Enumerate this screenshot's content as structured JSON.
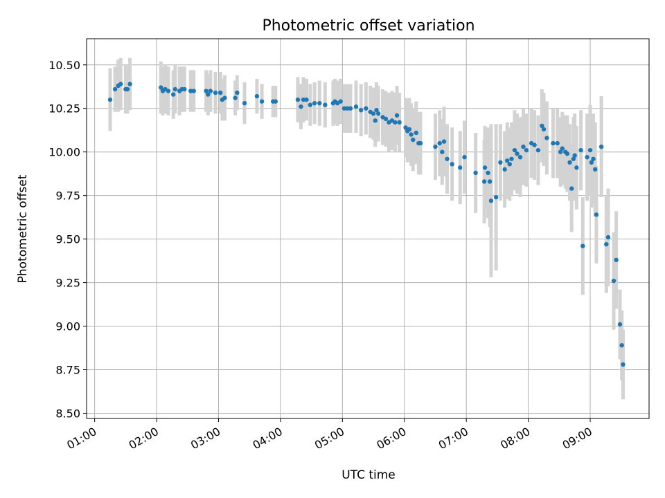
{
  "chart_data": {
    "type": "scatter",
    "title": "Photometric offset variation",
    "xlabel": "UTC time",
    "ylabel": "Photometric offset",
    "xlim": [
      0.87,
      9.95
    ],
    "ylim": [
      8.47,
      10.65
    ],
    "xticks": [
      {
        "value": 1,
        "label": "01:00"
      },
      {
        "value": 2,
        "label": "02:00"
      },
      {
        "value": 3,
        "label": "03:00"
      },
      {
        "value": 4,
        "label": "04:00"
      },
      {
        "value": 5,
        "label": "05:00"
      },
      {
        "value": 6,
        "label": "06:00"
      },
      {
        "value": 7,
        "label": "07:00"
      },
      {
        "value": 8,
        "label": "08:00"
      },
      {
        "value": 9,
        "label": "09:00"
      }
    ],
    "yticks": [
      {
        "value": 8.5,
        "label": "8.50"
      },
      {
        "value": 8.75,
        "label": "8.75"
      },
      {
        "value": 9.0,
        "label": "9.00"
      },
      {
        "value": 9.25,
        "label": "9.25"
      },
      {
        "value": 9.5,
        "label": "9.50"
      },
      {
        "value": 9.75,
        "label": "9.75"
      },
      {
        "value": 10.0,
        "label": "10.00"
      },
      {
        "value": 10.25,
        "label": "10.25"
      },
      {
        "value": 10.5,
        "label": "10.50"
      }
    ],
    "grid": true,
    "point_color": "#1f77b4",
    "errorbar_color": "#d3d3d3",
    "series": [
      {
        "points": [
          {
            "x": 1.25,
            "y": 10.3,
            "err": 0.18
          },
          {
            "x": 1.33,
            "y": 10.36,
            "err": 0.13
          },
          {
            "x": 1.38,
            "y": 10.38,
            "err": 0.15
          },
          {
            "x": 1.42,
            "y": 10.39,
            "err": 0.15
          },
          {
            "x": 1.5,
            "y": 10.36,
            "err": 0.14
          },
          {
            "x": 1.53,
            "y": 10.36,
            "err": 0.14
          },
          {
            "x": 1.57,
            "y": 10.39,
            "err": 0.15
          },
          {
            "x": 2.07,
            "y": 10.37,
            "err": 0.15
          },
          {
            "x": 2.1,
            "y": 10.35,
            "err": 0.14
          },
          {
            "x": 2.14,
            "y": 10.36,
            "err": 0.14
          },
          {
            "x": 2.19,
            "y": 10.35,
            "err": 0.14
          },
          {
            "x": 2.27,
            "y": 10.33,
            "err": 0.14
          },
          {
            "x": 2.3,
            "y": 10.36,
            "err": 0.14
          },
          {
            "x": 2.37,
            "y": 10.35,
            "err": 0.14
          },
          {
            "x": 2.41,
            "y": 10.36,
            "err": 0.13
          },
          {
            "x": 2.45,
            "y": 10.36,
            "err": 0.13
          },
          {
            "x": 2.55,
            "y": 10.35,
            "err": 0.12
          },
          {
            "x": 2.6,
            "y": 10.35,
            "err": 0.12
          },
          {
            "x": 2.8,
            "y": 10.35,
            "err": 0.12
          },
          {
            "x": 2.83,
            "y": 10.33,
            "err": 0.12
          },
          {
            "x": 2.87,
            "y": 10.35,
            "err": 0.12
          },
          {
            "x": 2.95,
            "y": 10.34,
            "err": 0.12
          },
          {
            "x": 3.03,
            "y": 10.34,
            "err": 0.12
          },
          {
            "x": 3.06,
            "y": 10.3,
            "err": 0.12
          },
          {
            "x": 3.1,
            "y": 10.31,
            "err": 0.13
          },
          {
            "x": 3.27,
            "y": 10.31,
            "err": 0.1
          },
          {
            "x": 3.3,
            "y": 10.34,
            "err": 0.1
          },
          {
            "x": 3.42,
            "y": 10.28,
            "err": 0.12
          },
          {
            "x": 3.62,
            "y": 10.32,
            "err": 0.1
          },
          {
            "x": 3.7,
            "y": 10.29,
            "err": 0.1
          },
          {
            "x": 3.88,
            "y": 10.29,
            "err": 0.09
          },
          {
            "x": 3.92,
            "y": 10.29,
            "err": 0.09
          },
          {
            "x": 4.28,
            "y": 10.3,
            "err": 0.13
          },
          {
            "x": 4.33,
            "y": 10.26,
            "err": 0.13
          },
          {
            "x": 4.37,
            "y": 10.3,
            "err": 0.13
          },
          {
            "x": 4.42,
            "y": 10.3,
            "err": 0.12
          },
          {
            "x": 4.48,
            "y": 10.27,
            "err": 0.12
          },
          {
            "x": 4.55,
            "y": 10.28,
            "err": 0.12
          },
          {
            "x": 4.63,
            "y": 10.28,
            "err": 0.13
          },
          {
            "x": 4.72,
            "y": 10.27,
            "err": 0.13
          },
          {
            "x": 4.85,
            "y": 10.28,
            "err": 0.13
          },
          {
            "x": 4.88,
            "y": 10.29,
            "err": 0.13
          },
          {
            "x": 4.92,
            "y": 10.28,
            "err": 0.13
          },
          {
            "x": 4.97,
            "y": 10.29,
            "err": 0.13
          },
          {
            "x": 5.03,
            "y": 10.25,
            "err": 0.14
          },
          {
            "x": 5.08,
            "y": 10.25,
            "err": 0.14
          },
          {
            "x": 5.13,
            "y": 10.25,
            "err": 0.14
          },
          {
            "x": 5.22,
            "y": 10.26,
            "err": 0.15
          },
          {
            "x": 5.3,
            "y": 10.24,
            "err": 0.15
          },
          {
            "x": 5.38,
            "y": 10.25,
            "err": 0.15
          },
          {
            "x": 5.45,
            "y": 10.23,
            "err": 0.15
          },
          {
            "x": 5.5,
            "y": 10.22,
            "err": 0.15
          },
          {
            "x": 5.53,
            "y": 10.18,
            "err": 0.15
          },
          {
            "x": 5.55,
            "y": 10.24,
            "err": 0.16
          },
          {
            "x": 5.58,
            "y": 10.22,
            "err": 0.16
          },
          {
            "x": 5.65,
            "y": 10.2,
            "err": 0.16
          },
          {
            "x": 5.7,
            "y": 10.19,
            "err": 0.16
          },
          {
            "x": 5.75,
            "y": 10.17,
            "err": 0.17
          },
          {
            "x": 5.8,
            "y": 10.18,
            "err": 0.17
          },
          {
            "x": 5.85,
            "y": 10.17,
            "err": 0.17
          },
          {
            "x": 5.88,
            "y": 10.21,
            "err": 0.17
          },
          {
            "x": 5.92,
            "y": 10.17,
            "err": 0.17
          },
          {
            "x": 6.02,
            "y": 10.14,
            "err": 0.17
          },
          {
            "x": 6.05,
            "y": 10.12,
            "err": 0.18
          },
          {
            "x": 6.08,
            "y": 10.13,
            "err": 0.18
          },
          {
            "x": 6.11,
            "y": 10.1,
            "err": 0.18
          },
          {
            "x": 6.14,
            "y": 10.07,
            "err": 0.18
          },
          {
            "x": 6.19,
            "y": 10.11,
            "err": 0.18
          },
          {
            "x": 6.23,
            "y": 10.05,
            "err": 0.18
          },
          {
            "x": 6.26,
            "y": 10.05,
            "err": 0.18
          },
          {
            "x": 6.5,
            "y": 10.03,
            "err": 0.19
          },
          {
            "x": 6.57,
            "y": 10.05,
            "err": 0.19
          },
          {
            "x": 6.61,
            "y": 10.0,
            "err": 0.19
          },
          {
            "x": 6.64,
            "y": 10.06,
            "err": 0.2
          },
          {
            "x": 6.69,
            "y": 9.96,
            "err": 0.2
          },
          {
            "x": 6.77,
            "y": 9.93,
            "err": 0.21
          },
          {
            "x": 6.9,
            "y": 9.91,
            "err": 0.21
          },
          {
            "x": 6.97,
            "y": 9.97,
            "err": 0.21
          },
          {
            "x": 7.15,
            "y": 9.88,
            "err": 0.23
          },
          {
            "x": 7.29,
            "y": 9.83,
            "err": 0.24
          },
          {
            "x": 7.3,
            "y": 9.91,
            "err": 0.24
          },
          {
            "x": 7.35,
            "y": 9.88,
            "err": 0.26
          },
          {
            "x": 7.38,
            "y": 9.83,
            "err": 0.26
          },
          {
            "x": 7.4,
            "y": 9.72,
            "err": 0.44
          },
          {
            "x": 7.48,
            "y": 9.74,
            "err": 0.42
          },
          {
            "x": 7.55,
            "y": 9.94,
            "err": 0.22
          },
          {
            "x": 7.62,
            "y": 9.9,
            "err": 0.22
          },
          {
            "x": 7.66,
            "y": 9.95,
            "err": 0.22
          },
          {
            "x": 7.7,
            "y": 9.93,
            "err": 0.21
          },
          {
            "x": 7.73,
            "y": 9.96,
            "err": 0.21
          },
          {
            "x": 7.78,
            "y": 10.01,
            "err": 0.23
          },
          {
            "x": 7.82,
            "y": 9.99,
            "err": 0.23
          },
          {
            "x": 7.87,
            "y": 9.97,
            "err": 0.23
          },
          {
            "x": 7.92,
            "y": 10.03,
            "err": 0.22
          },
          {
            "x": 7.97,
            "y": 10.01,
            "err": 0.21
          },
          {
            "x": 8.05,
            "y": 10.05,
            "err": 0.2
          },
          {
            "x": 8.1,
            "y": 10.04,
            "err": 0.2
          },
          {
            "x": 8.16,
            "y": 10.01,
            "err": 0.2
          },
          {
            "x": 8.22,
            "y": 10.15,
            "err": 0.21
          },
          {
            "x": 8.25,
            "y": 10.13,
            "err": 0.21
          },
          {
            "x": 8.3,
            "y": 10.08,
            "err": 0.21
          },
          {
            "x": 8.4,
            "y": 10.05,
            "err": 0.2
          },
          {
            "x": 8.47,
            "y": 10.05,
            "err": 0.2
          },
          {
            "x": 8.52,
            "y": 10.0,
            "err": 0.2
          },
          {
            "x": 8.55,
            "y": 10.02,
            "err": 0.21
          },
          {
            "x": 8.6,
            "y": 10.0,
            "err": 0.21
          },
          {
            "x": 8.63,
            "y": 9.99,
            "err": 0.22
          },
          {
            "x": 8.67,
            "y": 9.94,
            "err": 0.22
          },
          {
            "x": 8.7,
            "y": 9.79,
            "err": 0.25
          },
          {
            "x": 8.73,
            "y": 9.96,
            "err": 0.24
          },
          {
            "x": 8.75,
            "y": 9.98,
            "err": 0.24
          },
          {
            "x": 8.78,
            "y": 9.91,
            "err": 0.24
          },
          {
            "x": 8.85,
            "y": 10.01,
            "err": 0.23
          },
          {
            "x": 8.88,
            "y": 9.46,
            "err": 0.28
          },
          {
            "x": 8.95,
            "y": 9.97,
            "err": 0.25
          },
          {
            "x": 9.0,
            "y": 10.01,
            "err": 0.26
          },
          {
            "x": 9.02,
            "y": 9.94,
            "err": 0.26
          },
          {
            "x": 9.05,
            "y": 9.96,
            "err": 0.26
          },
          {
            "x": 9.08,
            "y": 9.9,
            "err": 0.27
          },
          {
            "x": 9.1,
            "y": 9.64,
            "err": 0.28
          },
          {
            "x": 9.18,
            "y": 10.03,
            "err": 0.29
          },
          {
            "x": 9.26,
            "y": 9.47,
            "err": 0.28
          },
          {
            "x": 9.29,
            "y": 9.51,
            "err": 0.28
          },
          {
            "x": 9.38,
            "y": 9.26,
            "err": 0.28
          },
          {
            "x": 9.42,
            "y": 9.38,
            "err": 0.28
          },
          {
            "x": 9.48,
            "y": 9.01,
            "err": 0.2
          },
          {
            "x": 9.51,
            "y": 8.89,
            "err": 0.2
          },
          {
            "x": 9.53,
            "y": 8.78,
            "err": 0.2
          }
        ]
      }
    ]
  }
}
